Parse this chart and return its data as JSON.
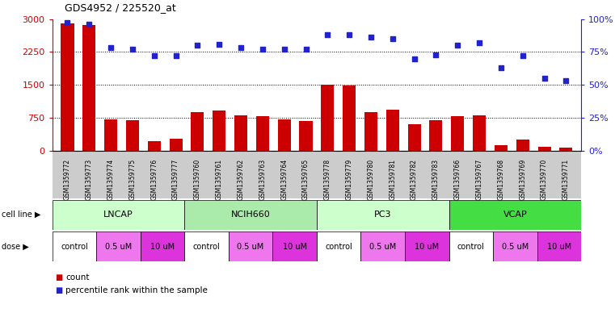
{
  "title": "GDS4952 / 225520_at",
  "samples": [
    "GSM1359772",
    "GSM1359773",
    "GSM1359774",
    "GSM1359775",
    "GSM1359776",
    "GSM1359777",
    "GSM1359760",
    "GSM1359761",
    "GSM1359762",
    "GSM1359763",
    "GSM1359764",
    "GSM1359765",
    "GSM1359778",
    "GSM1359779",
    "GSM1359780",
    "GSM1359781",
    "GSM1359782",
    "GSM1359783",
    "GSM1359766",
    "GSM1359767",
    "GSM1359768",
    "GSM1359769",
    "GSM1359770",
    "GSM1359771"
  ],
  "counts": [
    2900,
    2860,
    720,
    690,
    220,
    270,
    870,
    920,
    800,
    790,
    720,
    670,
    1510,
    1490,
    870,
    940,
    600,
    700,
    790,
    810,
    130,
    260,
    90,
    70
  ],
  "percentiles": [
    97,
    96,
    78,
    77,
    72,
    72,
    80,
    81,
    78,
    77,
    77,
    77,
    88,
    88,
    86,
    85,
    70,
    73,
    80,
    82,
    63,
    72,
    55,
    53
  ],
  "cell_lines": [
    {
      "name": "LNCAP",
      "start": 0,
      "end": 6,
      "color": "#ccffcc"
    },
    {
      "name": "NCIH660",
      "start": 6,
      "end": 12,
      "color": "#aaeaaa"
    },
    {
      "name": "PC3",
      "start": 12,
      "end": 18,
      "color": "#ccffcc"
    },
    {
      "name": "VCAP",
      "start": 18,
      "end": 24,
      "color": "#44dd44"
    }
  ],
  "dose_labels": [
    "control",
    "0.5 uM",
    "10 uM"
  ],
  "dose_colors": {
    "control": "#ffffff",
    "0.5 uM": "#ee77ee",
    "10 uM": "#dd33dd"
  },
  "bar_color": "#cc0000",
  "dot_color": "#2222cc",
  "left_ylim": [
    0,
    3000
  ],
  "right_ylim": [
    0,
    100
  ],
  "left_yticks": [
    0,
    750,
    1500,
    2250,
    3000
  ],
  "right_yticks": [
    0,
    25,
    50,
    75,
    100
  ],
  "right_yticklabels": [
    "0%",
    "25%",
    "50%",
    "75%",
    "100%"
  ],
  "hgrid_values": [
    750,
    1500,
    2250
  ],
  "background_color": "#ffffff",
  "xticklabel_bg": "#cccccc"
}
